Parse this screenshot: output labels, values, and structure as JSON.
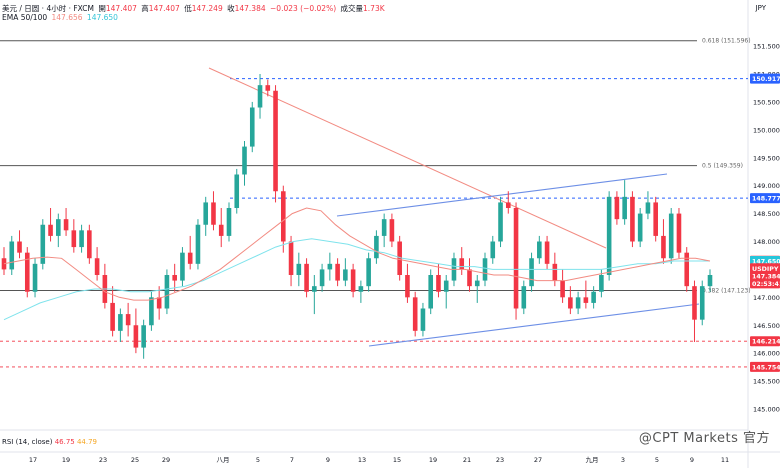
{
  "header": {
    "line1_symbol": "美元 / 日圆 · 4小时 · FXCM",
    "open_label": "開",
    "open": "147.407",
    "high_label": "高",
    "high": "147.407",
    "low_label": "低",
    "low": "147.249",
    "close_label": "收",
    "close": "147.384",
    "change": "−0.023 (−0.02%)",
    "volume_label": "成交量",
    "volume": "1.73K",
    "ema_label": "EMA 50/100",
    "ema50": "147.656",
    "ema100": "147.650",
    "currency": "JPY"
  },
  "watermark": "@CPT Markets 官方",
  "rsi": {
    "label": "RSI (14, close)",
    "v1": "46.75",
    "v2": "44.79"
  },
  "colors": {
    "up": "#26a69a",
    "down": "#f23645",
    "ema50": "#f28b82",
    "ema100": "#7fe3ec",
    "trend_down": "#f28b82",
    "channel": "#6d8fe6",
    "level_blue": "#2962ff",
    "level_red": "#f23645"
  },
  "chart_data": {
    "type": "candlestick",
    "y_ticks": [
      "151.500",
      "151.000",
      "150.500",
      "150.000",
      "149.500",
      "149.000",
      "148.500",
      "148.000",
      "147.500",
      "147.000",
      "146.500",
      "146.000",
      "145.500",
      "145.000"
    ],
    "x_ticks": [
      "17",
      "19",
      "23",
      "25",
      "29",
      "八月",
      "5",
      "7",
      "9",
      "13",
      "15",
      "19",
      "21",
      "23",
      "27",
      "九月",
      "3",
      "5",
      "9",
      "11"
    ],
    "fib_levels": [
      {
        "label": "0.618 (151.596)",
        "value": 151.596
      },
      {
        "label": "0.5 (149.359)",
        "value": 149.359
      },
      {
        "label": "0.382 (147.123)",
        "value": 147.123
      }
    ],
    "horizontal_levels": [
      {
        "value": 150.917,
        "label": "150.917",
        "style": "dashed-blue"
      },
      {
        "value": 148.777,
        "label": "148.777",
        "style": "dashed-blue"
      },
      {
        "value": 146.214,
        "label": "146.214",
        "style": "dashed-red"
      },
      {
        "value": 145.754,
        "label": "145.754",
        "style": "dashed-red"
      }
    ],
    "price_badges": [
      {
        "label": "150.917",
        "value": 150.917,
        "color": "#2962ff"
      },
      {
        "label": "148.777",
        "value": 148.777,
        "color": "#2962ff"
      },
      {
        "label": "147.656",
        "value": 147.656,
        "color": "#f23645"
      },
      {
        "label": "147.650",
        "value": 147.65,
        "color": "#26c6da"
      },
      {
        "label": "USDJPY",
        "value": 147.52,
        "color": "#f23645"
      },
      {
        "label": "147.384",
        "value": 147.384,
        "color": "#f23645"
      },
      {
        "label": "02:53:41",
        "value": 147.25,
        "color": "#f23645"
      },
      {
        "label": "146.214",
        "value": 146.214,
        "color": "#f23645"
      },
      {
        "label": "145.754",
        "value": 145.754,
        "color": "#f23645"
      }
    ],
    "candles": [
      [
        147.7,
        147.9,
        147.4,
        147.5
      ],
      [
        147.5,
        148.1,
        147.4,
        148.0
      ],
      [
        148.0,
        148.2,
        147.7,
        147.8
      ],
      [
        147.8,
        147.9,
        147.0,
        147.1
      ],
      [
        147.1,
        147.7,
        147.0,
        147.6
      ],
      [
        147.6,
        148.4,
        147.5,
        148.3
      ],
      [
        148.3,
        148.6,
        148.0,
        148.1
      ],
      [
        148.1,
        148.5,
        147.9,
        148.4
      ],
      [
        148.4,
        148.6,
        148.1,
        148.2
      ],
      [
        148.2,
        148.4,
        147.8,
        147.9
      ],
      [
        147.9,
        148.3,
        147.8,
        148.2
      ],
      [
        148.2,
        148.3,
        147.6,
        147.7
      ],
      [
        147.7,
        147.9,
        147.3,
        147.4
      ],
      [
        147.4,
        147.6,
        146.8,
        146.9
      ],
      [
        146.9,
        147.2,
        146.3,
        146.4
      ],
      [
        146.4,
        146.8,
        146.2,
        146.7
      ],
      [
        146.7,
        146.9,
        146.3,
        146.5
      ],
      [
        146.5,
        146.8,
        146.0,
        146.1
      ],
      [
        146.1,
        146.6,
        145.9,
        146.5
      ],
      [
        146.5,
        147.1,
        146.4,
        147.0
      ],
      [
        147.0,
        147.2,
        146.6,
        146.8
      ],
      [
        146.8,
        147.5,
        146.7,
        147.4
      ],
      [
        147.4,
        147.6,
        147.1,
        147.3
      ],
      [
        147.3,
        147.9,
        147.2,
        147.8
      ],
      [
        147.8,
        148.1,
        147.5,
        147.6
      ],
      [
        147.6,
        148.4,
        147.5,
        148.3
      ],
      [
        148.3,
        148.8,
        148.1,
        148.7
      ],
      [
        148.7,
        148.9,
        148.2,
        148.3
      ],
      [
        148.3,
        148.6,
        147.9,
        148.1
      ],
      [
        148.1,
        148.7,
        148.0,
        148.6
      ],
      [
        148.6,
        149.3,
        148.5,
        149.2
      ],
      [
        149.2,
        149.8,
        149.0,
        149.7
      ],
      [
        149.7,
        150.5,
        149.6,
        150.4
      ],
      [
        150.4,
        151.0,
        150.2,
        150.8
      ],
      [
        150.8,
        150.9,
        150.6,
        150.7
      ],
      [
        150.7,
        150.8,
        148.7,
        148.9
      ],
      [
        148.9,
        149.0,
        147.8,
        148.0
      ],
      [
        148.0,
        148.1,
        147.2,
        147.4
      ],
      [
        147.4,
        147.8,
        147.2,
        147.6
      ],
      [
        147.6,
        147.7,
        147.0,
        147.1
      ],
      [
        147.1,
        147.4,
        146.7,
        147.2
      ],
      [
        147.2,
        147.6,
        147.1,
        147.5
      ],
      [
        147.5,
        147.8,
        147.3,
        147.6
      ],
      [
        147.6,
        147.7,
        147.2,
        147.3
      ],
      [
        147.3,
        147.7,
        147.2,
        147.5
      ],
      [
        147.5,
        147.6,
        147.0,
        147.1
      ],
      [
        147.1,
        147.3,
        146.9,
        147.2
      ],
      [
        147.2,
        147.8,
        147.1,
        147.7
      ],
      [
        147.7,
        148.2,
        147.6,
        148.1
      ],
      [
        148.1,
        148.5,
        147.9,
        148.4
      ],
      [
        148.4,
        148.5,
        147.9,
        148.0
      ],
      [
        148.0,
        148.1,
        147.3,
        147.4
      ],
      [
        147.4,
        147.6,
        146.9,
        147.0
      ],
      [
        147.0,
        147.1,
        146.3,
        146.4
      ],
      [
        146.4,
        146.9,
        146.3,
        146.8
      ],
      [
        146.8,
        147.5,
        146.7,
        147.4
      ],
      [
        147.4,
        147.6,
        147.0,
        147.1
      ],
      [
        147.1,
        147.4,
        146.8,
        147.3
      ],
      [
        147.3,
        147.8,
        147.2,
        147.7
      ],
      [
        147.7,
        147.9,
        147.4,
        147.5
      ],
      [
        147.5,
        147.7,
        147.1,
        147.2
      ],
      [
        147.2,
        147.4,
        146.9,
        147.3
      ],
      [
        147.3,
        147.8,
        147.2,
        147.7
      ],
      [
        147.7,
        148.1,
        147.6,
        148.0
      ],
      [
        148.0,
        148.8,
        147.9,
        148.7
      ],
      [
        148.7,
        148.9,
        148.5,
        148.6
      ],
      [
        148.6,
        148.7,
        146.6,
        146.8
      ],
      [
        146.8,
        147.3,
        146.7,
        147.2
      ],
      [
        147.2,
        147.8,
        147.1,
        147.7
      ],
      [
        147.7,
        148.1,
        147.6,
        148.0
      ],
      [
        148.0,
        148.1,
        147.5,
        147.6
      ],
      [
        147.6,
        147.8,
        147.2,
        147.3
      ],
      [
        147.3,
        147.5,
        146.9,
        147.0
      ],
      [
        147.0,
        147.2,
        146.7,
        146.8
      ],
      [
        146.8,
        147.1,
        146.7,
        147.0
      ],
      [
        147.0,
        147.3,
        146.8,
        146.9
      ],
      [
        146.9,
        147.2,
        146.8,
        147.1
      ],
      [
        147.1,
        147.5,
        147.0,
        147.4
      ],
      [
        147.4,
        148.9,
        147.3,
        148.8
      ],
      [
        148.8,
        148.9,
        148.3,
        148.4
      ],
      [
        148.4,
        149.1,
        148.3,
        148.8
      ],
      [
        148.8,
        148.9,
        147.9,
        148.0
      ],
      [
        148.0,
        148.6,
        147.9,
        148.5
      ],
      [
        148.5,
        148.9,
        148.4,
        148.7
      ],
      [
        148.7,
        148.8,
        148.0,
        148.1
      ],
      [
        148.1,
        148.4,
        147.6,
        147.7
      ],
      [
        147.7,
        148.6,
        147.6,
        148.5
      ],
      [
        148.5,
        148.6,
        147.7,
        147.8
      ],
      [
        147.8,
        147.9,
        147.1,
        147.2
      ],
      [
        147.2,
        147.3,
        146.2,
        146.6
      ],
      [
        146.6,
        147.3,
        146.5,
        147.2
      ],
      [
        147.2,
        147.5,
        147.1,
        147.4
      ]
    ],
    "ema50": [
      147.6,
      147.65,
      147.7,
      147.72,
      147.7,
      147.5,
      147.3,
      147.1,
      147.0,
      146.95,
      146.95,
      147.0,
      147.1,
      147.2,
      147.35,
      147.5,
      147.7,
      147.9,
      148.1,
      148.3,
      148.5,
      148.6,
      148.55,
      148.3,
      148.1,
      147.95,
      147.8,
      147.7,
      147.65,
      147.6,
      147.55,
      147.5,
      147.5,
      147.45,
      147.4,
      147.4,
      147.35,
      147.3,
      147.3,
      147.3,
      147.35,
      147.4,
      147.45,
      147.5,
      147.55,
      147.6,
      147.65,
      147.7,
      147.7,
      147.65
    ],
    "ema100": [
      146.6,
      146.75,
      146.9,
      147.0,
      147.1,
      147.15,
      147.15,
      147.1,
      147.1,
      147.15,
      147.2,
      147.3,
      147.45,
      147.6,
      147.75,
      147.9,
      148.0,
      148.05,
      148.0,
      147.95,
      147.85,
      147.8,
      147.7,
      147.65,
      147.6,
      147.55,
      147.55,
      147.5,
      147.5,
      147.5,
      147.5,
      147.5,
      147.5,
      147.5,
      147.55,
      147.6,
      147.6,
      147.65,
      147.65,
      147.65
    ]
  }
}
